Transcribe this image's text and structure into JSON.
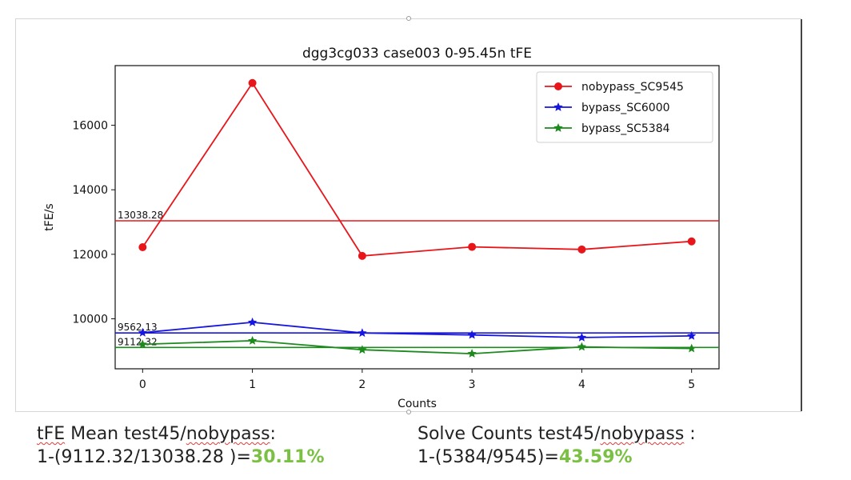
{
  "chart_data": {
    "type": "line",
    "title": "dgg3cg033 case003 0-95.45n tFE",
    "xlabel": "Counts",
    "ylabel": "tFE/s",
    "x": [
      0,
      1,
      2,
      3,
      4,
      5
    ],
    "xlim": [
      -0.25,
      5.25
    ],
    "ylim": [
      8450,
      17850
    ],
    "xticks": [
      "0",
      "1",
      "2",
      "3",
      "4",
      "5"
    ],
    "yticks": [
      10000,
      12000,
      14000,
      16000
    ],
    "ytick_labels": [
      "10000",
      "12000",
      "14000",
      "16000"
    ],
    "grid": false,
    "legend_position": "top-right",
    "series": [
      {
        "name": "nobypass_SC9545",
        "color": "#e8161b",
        "marker": "circle",
        "values": [
          12220,
          17310,
          11950,
          12230,
          12150,
          12400
        ]
      },
      {
        "name": "bypass_SC6000",
        "color": "#1616e0",
        "marker": "star",
        "values": [
          9570,
          9890,
          9560,
          9500,
          9420,
          9470
        ]
      },
      {
        "name": "bypass_SC5384",
        "color": "#1c8a1c",
        "marker": "star",
        "values": [
          9210,
          9320,
          9040,
          8920,
          9130,
          9080
        ]
      }
    ],
    "hlines": [
      {
        "value": 13038.28,
        "label": "13038.28",
        "color": "#e8161b"
      },
      {
        "value": 9562.13,
        "label": "9562.13",
        "color": "#1616e0"
      },
      {
        "value": 9112.32,
        "label": "9112.32",
        "color": "#1c8a1c"
      }
    ]
  },
  "captions": {
    "left": {
      "underlined_a": "tFE",
      "mid_a": " Mean test45/",
      "underlined_b": "nobypass",
      "tail_a": ":",
      "formula": "1-(9112.32/13038.28 )=",
      "result": "30.11%"
    },
    "right": {
      "head": "Solve Counts test45/",
      "underlined": "nobypass",
      "tail": " :",
      "formula": "1-(5384/9545)=",
      "result": "43.59%"
    }
  }
}
